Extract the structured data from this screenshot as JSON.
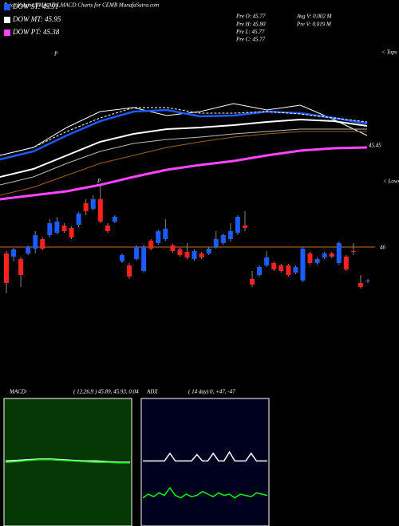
{
  "header": {
    "title": "Price,Volume,EMA,ADX,MACD Charts for CEMB MunafaSutra.com"
  },
  "info": [
    [
      "Pre O: 45.77",
      "Pre H: 45.80",
      "Pre L: 45.77",
      "Pre C: 45.77"
    ],
    [
      "Avg V: 0.002 M",
      "Pre V: 0.019 M"
    ]
  ],
  "chart_data": [
    {
      "type": "candlestick",
      "ylim": [
        45.3,
        48.5
      ],
      "up_color": "#1a5cff",
      "down_color": "#ff2020",
      "hline": 46,
      "hline_color": "#c8741a",
      "open": [
        45.92,
        45.88,
        45.85,
        45.92,
        45.98,
        46.1,
        46.15,
        46.18,
        46.27,
        46.24,
        46.28,
        46.55,
        46.48,
        46.6,
        46.27,
        46.32,
        45.82,
        45.77,
        45.85,
        45.7,
        46.08,
        46.05,
        46.1,
        46.02,
        45.97,
        45.94,
        45.85,
        45.92,
        45.92,
        46.0,
        46.05,
        46.1,
        46.18,
        46.27,
        45.6,
        45.65,
        45.77,
        45.8,
        45.77,
        45.77,
        45.68,
        45.58,
        45.92,
        45.8,
        45.87,
        45.92,
        45.8,
        45.88,
        45.95,
        45.55,
        45.57
      ],
      "high": [
        45.95,
        45.99,
        45.88,
        46.02,
        46.2,
        46.12,
        46.35,
        46.38,
        46.3,
        46.26,
        46.44,
        46.6,
        46.65,
        46.78,
        46.3,
        46.4,
        45.92,
        45.8,
        46.02,
        46.03,
        46.1,
        46.22,
        46.35,
        46.04,
        45.99,
        46.05,
        45.97,
        45.94,
        46.0,
        46.2,
        46.17,
        46.3,
        46.4,
        46.45,
        45.7,
        45.77,
        45.95,
        45.82,
        45.79,
        45.79,
        45.77,
        46.0,
        45.94,
        45.87,
        45.94,
        45.94,
        46.07,
        45.9,
        46.05,
        45.65,
        45.6
      ],
      "low": [
        45.42,
        45.82,
        45.5,
        45.9,
        45.92,
        45.96,
        46.12,
        46.16,
        46.18,
        46.1,
        46.25,
        46.4,
        46.46,
        46.3,
        46.18,
        46.3,
        45.8,
        45.6,
        45.83,
        45.68,
        45.96,
        46.03,
        46.08,
        45.93,
        45.88,
        45.85,
        45.83,
        45.85,
        45.9,
        45.98,
        46.03,
        46.07,
        46.15,
        46.2,
        45.5,
        45.63,
        45.75,
        45.7,
        45.68,
        45.63,
        45.66,
        45.56,
        45.78,
        45.78,
        45.85,
        45.86,
        45.78,
        45.7,
        45.9,
        45.48,
        45.55
      ],
      "close": [
        45.55,
        45.97,
        45.65,
        46.0,
        46.15,
        45.98,
        46.3,
        46.32,
        46.2,
        46.12,
        46.42,
        46.45,
        46.6,
        46.32,
        46.2,
        46.38,
        45.9,
        45.63,
        46.0,
        46.0,
        45.98,
        46.2,
        46.23,
        45.95,
        45.9,
        45.87,
        45.95,
        45.87,
        45.98,
        46.1,
        46.15,
        46.2,
        46.38,
        46.24,
        45.53,
        45.75,
        45.87,
        45.72,
        45.7,
        45.65,
        45.75,
        45.98,
        45.8,
        45.85,
        45.92,
        45.88,
        46.05,
        45.72,
        45.94,
        45.5,
        45.58
      ]
    },
    {
      "type": "line",
      "ylim": [
        43.5,
        46.7
      ],
      "series": [
        {
          "color": "#ffffff",
          "values": [
            45.35,
            45.45,
            45.7,
            45.9,
            45.95,
            45.85,
            45.9,
            46.0,
            45.92,
            45.98,
            45.8,
            45.6
          ]
        },
        {
          "name": "DOW ST: 45.91",
          "color": "#1a5cff",
          "values": [
            45.3,
            45.4,
            45.6,
            45.78,
            45.9,
            45.92,
            45.84,
            45.85,
            45.9,
            45.88,
            45.82,
            45.75
          ]
        },
        {
          "color": "#ffffff",
          "dashed": true,
          "values": [
            45.35,
            45.45,
            45.65,
            45.82,
            45.95,
            45.95,
            45.88,
            45.88,
            45.9,
            45.87,
            45.82,
            45.77
          ]
        },
        {
          "name": "DOW MT: 45.95",
          "color": "#ffffff",
          "values": [
            45.08,
            45.18,
            45.35,
            45.52,
            45.62,
            45.68,
            45.7,
            45.73,
            45.77,
            45.8,
            45.78,
            45.72
          ]
        },
        {
          "color": "#bbbbbb",
          "values": [
            44.98,
            45.08,
            45.25,
            45.4,
            45.5,
            45.55,
            45.58,
            45.62,
            45.65,
            45.68,
            45.68,
            45.68
          ]
        },
        {
          "color": "#a0601a",
          "values": [
            44.85,
            44.95,
            45.1,
            45.25,
            45.35,
            45.45,
            45.52,
            45.58,
            45.62,
            45.65,
            45.65,
            45.65
          ]
        },
        {
          "name": "DOW PT: 45.38",
          "color": "#ff44ff",
          "values": [
            44.8,
            44.85,
            44.9,
            44.98,
            45.08,
            45.17,
            45.23,
            45.28,
            45.35,
            45.41,
            45.44,
            45.45
          ]
        }
      ],
      "annotations": [
        "45.45",
        "< Tops",
        "< Lows",
        "P",
        "P"
      ]
    },
    {
      "type": "line",
      "title": "MACD:",
      "subtitle": "( 12,26,9 ) 45.89, 45.93, 0.04",
      "ylim": [
        -1,
        1
      ],
      "background": "#063806",
      "series": [
        {
          "color": "#ffffff",
          "values": [
            0.02,
            0.03,
            0.04,
            0.05,
            0.05,
            0.04,
            0.03,
            0.02,
            0.02,
            0.01,
            0.0,
            0.0
          ]
        },
        {
          "color": "#00ff00",
          "values": [
            0.0,
            0.01,
            0.03,
            0.04,
            0.04,
            0.03,
            0.02,
            0.01,
            0.0,
            0.0,
            -0.01,
            -0.01
          ]
        }
      ]
    },
    {
      "type": "line",
      "title": "ADX",
      "subtitle": "( 14 day) 0, +47, -47",
      "ylim": [
        0,
        100
      ],
      "background": "#00001f",
      "series": [
        {
          "color": "#ffffff",
          "values": [
            51,
            51,
            51,
            51,
            51,
            57,
            51,
            51,
            51,
            51,
            56,
            51,
            51,
            57,
            51,
            51,
            58,
            51,
            51,
            51,
            57,
            51,
            51,
            51
          ]
        },
        {
          "color": "#00ff00",
          "values": [
            22,
            25,
            23,
            26,
            24,
            30,
            24,
            22,
            25,
            23,
            24,
            27,
            25,
            23,
            26,
            24,
            25,
            22,
            25,
            24,
            23,
            26,
            25,
            24
          ]
        }
      ]
    }
  ]
}
